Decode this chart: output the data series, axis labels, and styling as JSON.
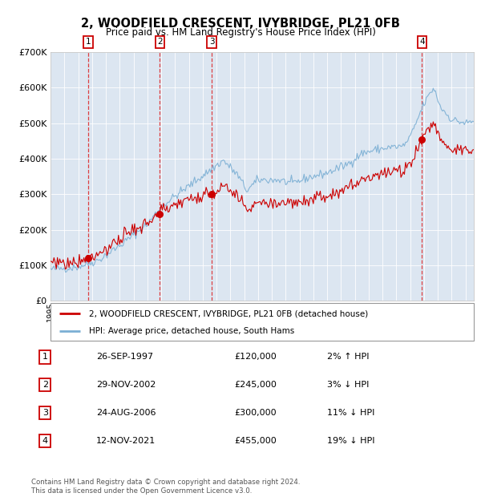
{
  "title": "2, WOODFIELD CRESCENT, IVYBRIDGE, PL21 0FB",
  "subtitle": "Price paid vs. HM Land Registry's House Price Index (HPI)",
  "footer": "Contains HM Land Registry data © Crown copyright and database right 2024.\nThis data is licensed under the Open Government Licence v3.0.",
  "legend_line1": "2, WOODFIELD CRESCENT, IVYBRIDGE, PL21 0FB (detached house)",
  "legend_line2": "HPI: Average price, detached house, South Hams",
  "transactions": [
    {
      "num": 1,
      "date_yr": 1997.73,
      "price": 120000,
      "label": "26-SEP-1997",
      "amount": "£120,000",
      "pct": "2% ↑ HPI"
    },
    {
      "num": 2,
      "date_yr": 2002.91,
      "price": 245000,
      "label": "29-NOV-2002",
      "amount": "£245,000",
      "pct": "3% ↓ HPI"
    },
    {
      "num": 3,
      "date_yr": 2006.65,
      "price": 300000,
      "label": "24-AUG-2006",
      "amount": "£300,000",
      "pct": "11% ↓ HPI"
    },
    {
      "num": 4,
      "date_yr": 2021.86,
      "price": 455000,
      "label": "12-NOV-2021",
      "amount": "£455,000",
      "pct": "19% ↓ HPI"
    }
  ],
  "hpi_color": "#7bafd4",
  "price_color": "#cc0000",
  "plot_bg": "#dce6f1",
  "ylim": [
    0,
    700000
  ],
  "yticks": [
    0,
    100000,
    200000,
    300000,
    400000,
    500000,
    600000,
    700000
  ],
  "xlim_start": 1995.0,
  "xlim_end": 2025.6,
  "hpi_anchors": {
    "1995.0": 88000,
    "1997.0": 95000,
    "1998.5": 115000,
    "2000.0": 155000,
    "2002.0": 215000,
    "2003.0": 265000,
    "2004.2": 300000,
    "2007.5": 395000,
    "2008.5": 355000,
    "2009.2": 310000,
    "2010.0": 340000,
    "2011.5": 340000,
    "2012.5": 330000,
    "2013.5": 345000,
    "2015.0": 360000,
    "2016.5": 385000,
    "2017.5": 415000,
    "2018.5": 425000,
    "2019.5": 432000,
    "2020.5": 435000,
    "2021.0": 460000,
    "2022.0": 555000,
    "2022.7": 600000,
    "2023.2": 545000,
    "2024.0": 510000,
    "2025.0": 500000,
    "2025.6": 505000
  }
}
